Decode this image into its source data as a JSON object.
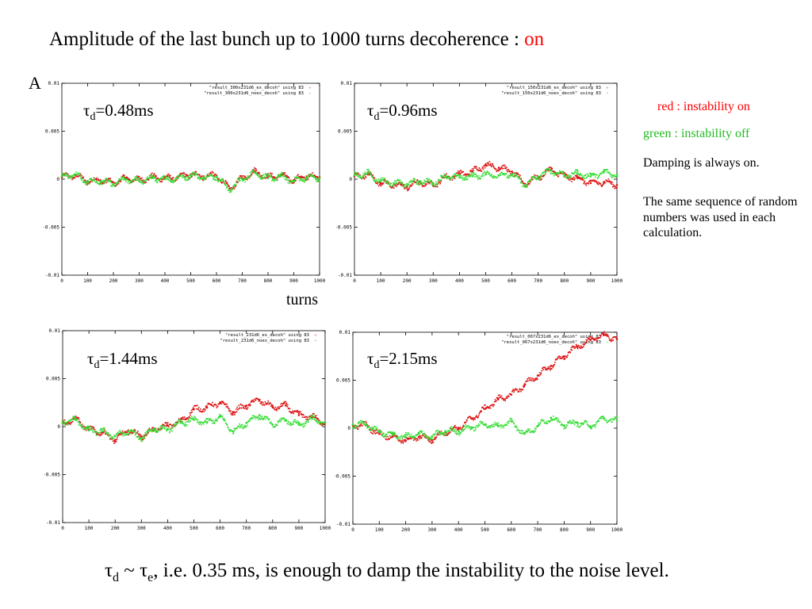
{
  "title": {
    "text": "Amplitude of the last bunch up to 1000 turns  decoherence : ",
    "highlight": "on",
    "highlight_color": "#ff0000"
  },
  "y_axis_label": "A",
  "x_axis_label": "turns",
  "colors": {
    "red_series": "#dd1111",
    "green_series": "#33dd33"
  },
  "notes": {
    "red": "red : instability on",
    "green": "green : instability off",
    "damping": "Damping is always on.",
    "sequence": "The same sequence of random numbers was used in each calculation."
  },
  "footer": {
    "tau": "τ",
    "sub_d": "d",
    "sim": " ~ ",
    "tau2": "τ",
    "sub_e": "e",
    "rest": ", i.e. 0.35 ms, is enough to damp the instability to the noise level."
  },
  "chart_data": [
    {
      "type": "scatter",
      "tau_prefix": "τ",
      "tau_sub": "d",
      "tau_value": "=0.48ms",
      "xlim": [
        0,
        1000
      ],
      "ylim": [
        -0.01,
        0.01
      ],
      "x_ticks": [
        "0",
        "100",
        "200",
        "300",
        "400",
        "500",
        "600",
        "700",
        "800",
        "900",
        "1000"
      ],
      "y_ticks": [
        "0.01",
        "0.005",
        "0",
        "-0.005",
        "-0.01"
      ],
      "legend_position": "top-right",
      "series": [
        {
          "name": "\"result_300x231d6_ex_decoh\" using 83",
          "color": "red",
          "x": [
            0,
            50,
            100,
            150,
            200,
            250,
            300,
            350,
            400,
            450,
            500,
            550,
            600,
            650,
            700,
            750,
            800,
            850,
            900,
            950,
            1000
          ],
          "y": [
            0.0002,
            0.0004,
            -0.0002,
            -0.0001,
            -0.0004,
            0.0001,
            -0.0001,
            0.0002,
            0.0001,
            0.0002,
            0.0005,
            0.0003,
            0.0004,
            -0.001,
            0.0001,
            0.0008,
            0.0002,
            0.0004,
            -0.0001,
            0.0003,
            0.0002
          ]
        },
        {
          "name": "\"result_300x231d6_noex_decoh\" using 83",
          "color": "green",
          "x": [
            0,
            50,
            100,
            150,
            200,
            250,
            300,
            350,
            400,
            450,
            500,
            550,
            600,
            650,
            700,
            750,
            800,
            850,
            900,
            950,
            1000
          ],
          "y": [
            0.0003,
            0.0005,
            -0.0003,
            -0.0002,
            -0.0005,
            0.0,
            -0.0002,
            0.0001,
            0.0,
            0.0001,
            0.0004,
            0.0002,
            0.0003,
            -0.0011,
            0.0,
            0.0007,
            0.0001,
            0.0003,
            -0.0002,
            0.0002,
            0.0001
          ]
        }
      ]
    },
    {
      "type": "scatter",
      "tau_prefix": "τ",
      "tau_sub": "d",
      "tau_value": "=0.96ms",
      "xlim": [
        0,
        1000
      ],
      "ylim": [
        -0.01,
        0.01
      ],
      "x_ticks": [
        "0",
        "100",
        "200",
        "300",
        "400",
        "500",
        "600",
        "700",
        "800",
        "900",
        "1000"
      ],
      "y_ticks": [
        "0.01",
        "0.005",
        "0",
        "-0.005",
        "-0.01"
      ],
      "legend_position": "top-right",
      "series": [
        {
          "name": "\"result_150x231d6_ex_decoh\" using 83",
          "color": "red",
          "x": [
            0,
            50,
            100,
            150,
            200,
            250,
            300,
            350,
            400,
            450,
            500,
            550,
            600,
            650,
            700,
            750,
            800,
            850,
            900,
            950,
            1000
          ],
          "y": [
            0.0003,
            0.0005,
            -0.0004,
            -0.0006,
            -0.0008,
            -0.0003,
            -0.0006,
            0.0002,
            0.0005,
            0.0008,
            0.0015,
            0.0012,
            0.0008,
            -0.0005,
            0.0002,
            0.001,
            0.0003,
            0.0001,
            -0.0004,
            -0.0003,
            -0.0006
          ]
        },
        {
          "name": "\"result_150x231d6_noex_decoh\" using 83",
          "color": "green",
          "x": [
            0,
            50,
            100,
            150,
            200,
            250,
            300,
            350,
            400,
            450,
            500,
            550,
            600,
            650,
            700,
            750,
            800,
            850,
            900,
            950,
            1000
          ],
          "y": [
            0.0004,
            0.0006,
            -0.0002,
            -0.0004,
            -0.0005,
            -0.0002,
            -0.0004,
            0.0003,
            0.0002,
            0.0003,
            0.0005,
            0.0004,
            0.0005,
            -0.0006,
            0.0003,
            0.0009,
            0.0004,
            0.0006,
            0.0003,
            0.0007,
            0.0005
          ]
        }
      ]
    },
    {
      "type": "scatter",
      "tau_prefix": "τ",
      "tau_sub": "d",
      "tau_value": "=1.44ms",
      "xlim": [
        0,
        1000
      ],
      "ylim": [
        -0.01,
        0.01
      ],
      "x_ticks": [
        "0",
        "100",
        "200",
        "300",
        "400",
        "500",
        "600",
        "700",
        "800",
        "900",
        "1000"
      ],
      "y_ticks": [
        "0.01",
        "0.005",
        "0",
        "-0.005",
        "-0.01"
      ],
      "legend_position": "top-right",
      "series": [
        {
          "name": "\"result_231d6_ex_decoh\" using 83",
          "color": "red",
          "x": [
            0,
            50,
            100,
            150,
            200,
            250,
            300,
            350,
            400,
            450,
            500,
            550,
            600,
            650,
            700,
            750,
            800,
            850,
            900,
            950,
            1000
          ],
          "y": [
            0.0004,
            0.0008,
            -0.0003,
            -0.0006,
            -0.0014,
            -0.0004,
            -0.001,
            -0.0003,
            0.0001,
            0.0005,
            0.0018,
            0.002,
            0.0025,
            0.0015,
            0.0022,
            0.0028,
            0.002,
            0.0022,
            0.0012,
            0.001,
            0.0004
          ]
        },
        {
          "name": "\"result_231d6_noex_decoh\" using 83",
          "color": "green",
          "x": [
            0,
            50,
            100,
            150,
            200,
            250,
            300,
            350,
            400,
            450,
            500,
            550,
            600,
            650,
            700,
            750,
            800,
            850,
            900,
            950,
            1000
          ],
          "y": [
            0.0005,
            0.0007,
            -0.0004,
            -0.0005,
            -0.001,
            -0.0005,
            -0.0012,
            -0.0002,
            -0.0003,
            0.0004,
            0.0007,
            0.0004,
            0.001,
            -0.0005,
            0.0004,
            0.0012,
            0.0002,
            0.0007,
            0.0002,
            0.0008,
            0.0004
          ]
        }
      ]
    },
    {
      "type": "scatter",
      "tau_prefix": "τ",
      "tau_sub": "d",
      "tau_value": "=2.15ms",
      "xlim": [
        0,
        1000
      ],
      "ylim": [
        -0.01,
        0.01
      ],
      "x_ticks": [
        "0",
        "100",
        "200",
        "300",
        "400",
        "500",
        "600",
        "700",
        "800",
        "900",
        "1000"
      ],
      "y_ticks": [
        "0.01",
        "0.005",
        "0",
        "-0.005",
        "-0.01"
      ],
      "legend_position": "top-right",
      "series": [
        {
          "name": "\"result_067x231d6_ex_decoh\" using 83",
          "color": "red",
          "x": [
            0,
            50,
            100,
            150,
            200,
            250,
            300,
            350,
            400,
            450,
            500,
            550,
            600,
            650,
            700,
            750,
            800,
            850,
            900,
            950,
            1000
          ],
          "y": [
            0.0003,
            0.0003,
            -0.0006,
            -0.0009,
            -0.0013,
            -0.0009,
            -0.0012,
            -0.0004,
            0.0,
            0.001,
            0.002,
            0.003,
            0.0035,
            0.0045,
            0.0055,
            0.0065,
            0.0075,
            0.0085,
            0.0092,
            0.0097,
            0.0093
          ]
        },
        {
          "name": "\"result_067x231d6_noex_decoh\" using 83",
          "color": "green",
          "x": [
            0,
            50,
            100,
            150,
            200,
            250,
            300,
            350,
            400,
            450,
            500,
            550,
            600,
            650,
            700,
            750,
            800,
            850,
            900,
            950,
            1000
          ],
          "y": [
            0.0004,
            0.0004,
            -0.0004,
            -0.0007,
            -0.0009,
            -0.0006,
            -0.0009,
            -0.0003,
            -0.0003,
            0.0001,
            0.0004,
            0.0002,
            0.0007,
            -0.0006,
            0.0002,
            0.0011,
            0.0003,
            0.0006,
            0.0002,
            0.001,
            0.0008
          ]
        }
      ]
    }
  ]
}
